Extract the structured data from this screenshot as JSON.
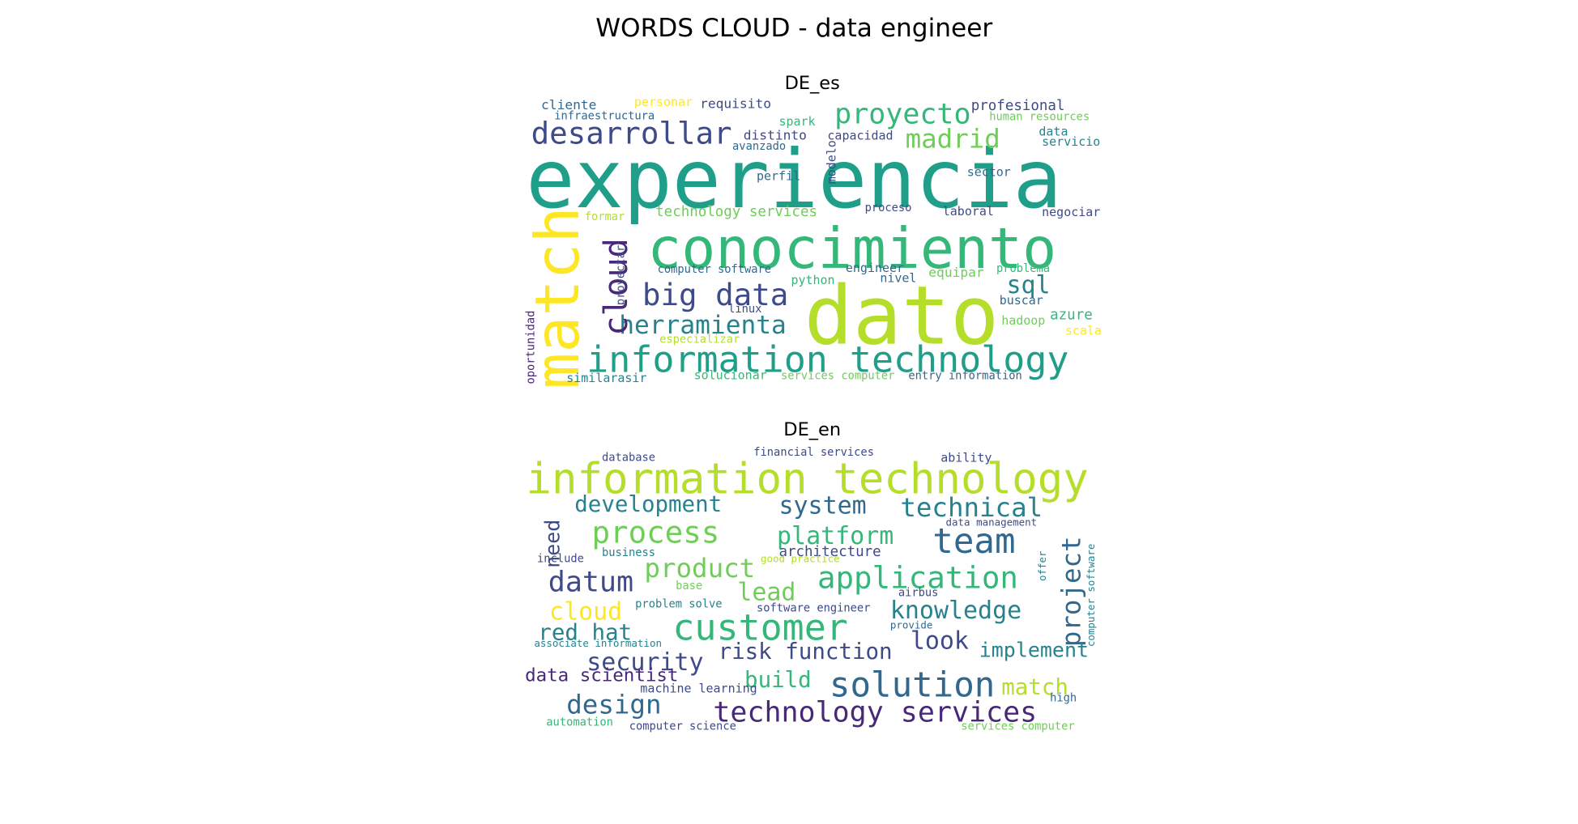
{
  "title": "WORDS CLOUD - data engineer",
  "panels": [
    {
      "title": "DE_es",
      "words": [
        "experiencia",
        "conocimiento",
        "dato",
        "match",
        "information technology",
        "big data",
        "herramienta",
        "desarrollar",
        "proyecto",
        "madrid",
        "cloud",
        "sql",
        "technology services",
        "computer software",
        "python",
        "engineer",
        "nivel",
        "equipar",
        "problema",
        "buscar",
        "hadoop",
        "azure",
        "scala",
        "linux",
        "especializar",
        "oportunidad",
        "similarasir",
        "solucionar",
        "services computer",
        "entry information",
        "cliente",
        "infraestructura",
        "personar",
        "requisito",
        "spark",
        "distinto",
        "avanzado",
        "capacidad",
        "profesional",
        "human resources",
        "data",
        "servicio",
        "perfil",
        "modelo",
        "sector",
        "laboral",
        "negociar",
        "proceso",
        "formar",
        "proyectar"
      ]
    },
    {
      "title": "DE_en",
      "words": [
        "information technology",
        "development",
        "system",
        "technical",
        "process",
        "platform",
        "team",
        "architecture",
        "need",
        "project",
        "datum",
        "product",
        "application",
        "lead",
        "cloud",
        "customer",
        "knowledge",
        "red hat",
        "look",
        "implement",
        "security",
        "risk function",
        "data scientist",
        "build",
        "solution",
        "match",
        "design",
        "technology services",
        "machine learning",
        "automation",
        "computer science",
        "services computer",
        "database",
        "financial services",
        "ability",
        "include",
        "business",
        "good practice",
        "airbus",
        "base",
        "problem solve",
        "software engineer",
        "associate information",
        "provide",
        "high",
        "computer software",
        "offer",
        "data management"
      ]
    }
  ]
}
